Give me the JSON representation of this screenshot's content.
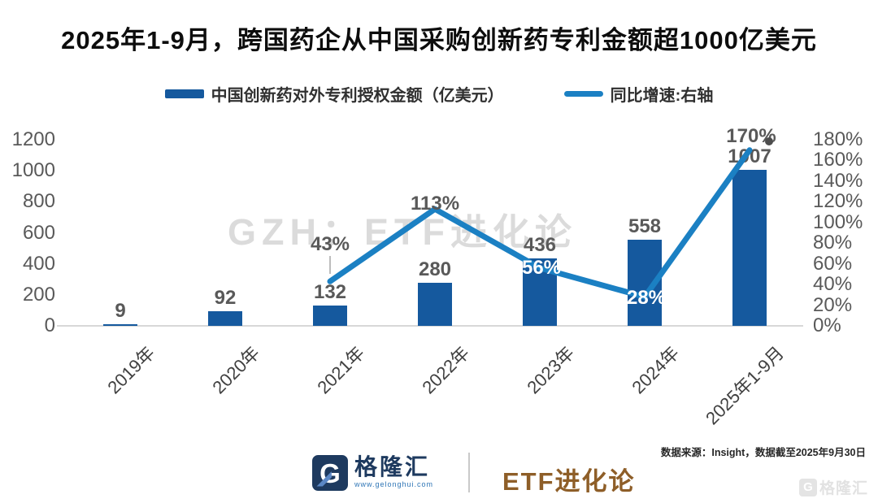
{
  "title": "2025年1-9月，跨国药企从中国采购创新药专利金额超1000亿美元",
  "legend": {
    "bar_label": "中国创新药对外专利授权金额（亿美元）",
    "line_label": "同比增速:右轴"
  },
  "watermark": "GZH：ETF进化论",
  "colors": {
    "bar": "#15599e",
    "line": "#1b80c3",
    "label_gray": "#595959",
    "label_white": "#ffffff",
    "brand_navy": "#1e3a5f",
    "brand_gold": "#8e5e28"
  },
  "chart_data": {
    "type": "bar+line",
    "title": "2025年1-9月，跨国药企从中国采购创新药专利金额超1000亿美元",
    "categories": [
      "2019年",
      "2020年",
      "2021年",
      "2022年",
      "2023年",
      "2024年",
      "2025年1-9月"
    ],
    "series": [
      {
        "name": "中国创新药对外专利授权金额（亿美元）",
        "type": "bar",
        "axis": "left",
        "values": [
          9,
          92,
          132,
          280,
          436,
          558,
          1007
        ],
        "labels": [
          "9",
          "92",
          "132",
          "280",
          "436",
          "558",
          "1007"
        ]
      },
      {
        "name": "同比增速:右轴",
        "type": "line",
        "axis": "right",
        "values": [
          null,
          null,
          43,
          113,
          56,
          28,
          170
        ],
        "labels": [
          null,
          null,
          "43%",
          "113%",
          "56%",
          "28%",
          "170%"
        ],
        "unit": "%"
      }
    ],
    "left_axis": {
      "min": 0,
      "max": 1200,
      "tick_step": 200,
      "ticks": [
        "1200",
        "1000",
        "800",
        "600",
        "400",
        "200",
        "0"
      ]
    },
    "right_axis": {
      "min": 0,
      "max": 180,
      "tick_step": 20,
      "ticks": [
        "180%",
        "160%",
        "140%",
        "120%",
        "100%",
        "80%",
        "60%",
        "40%",
        "20%",
        "0%"
      ]
    },
    "grid": false,
    "legend_position": "top"
  },
  "footer": {
    "brand_initial": "G",
    "brand_name": "格隆汇",
    "brand_url": "www.gelonghui.com",
    "brand_right": "ETF进化论",
    "source_note": "数据来源：Insight，数据截至2025年9月30日",
    "ghost_watermark": "格隆汇"
  }
}
